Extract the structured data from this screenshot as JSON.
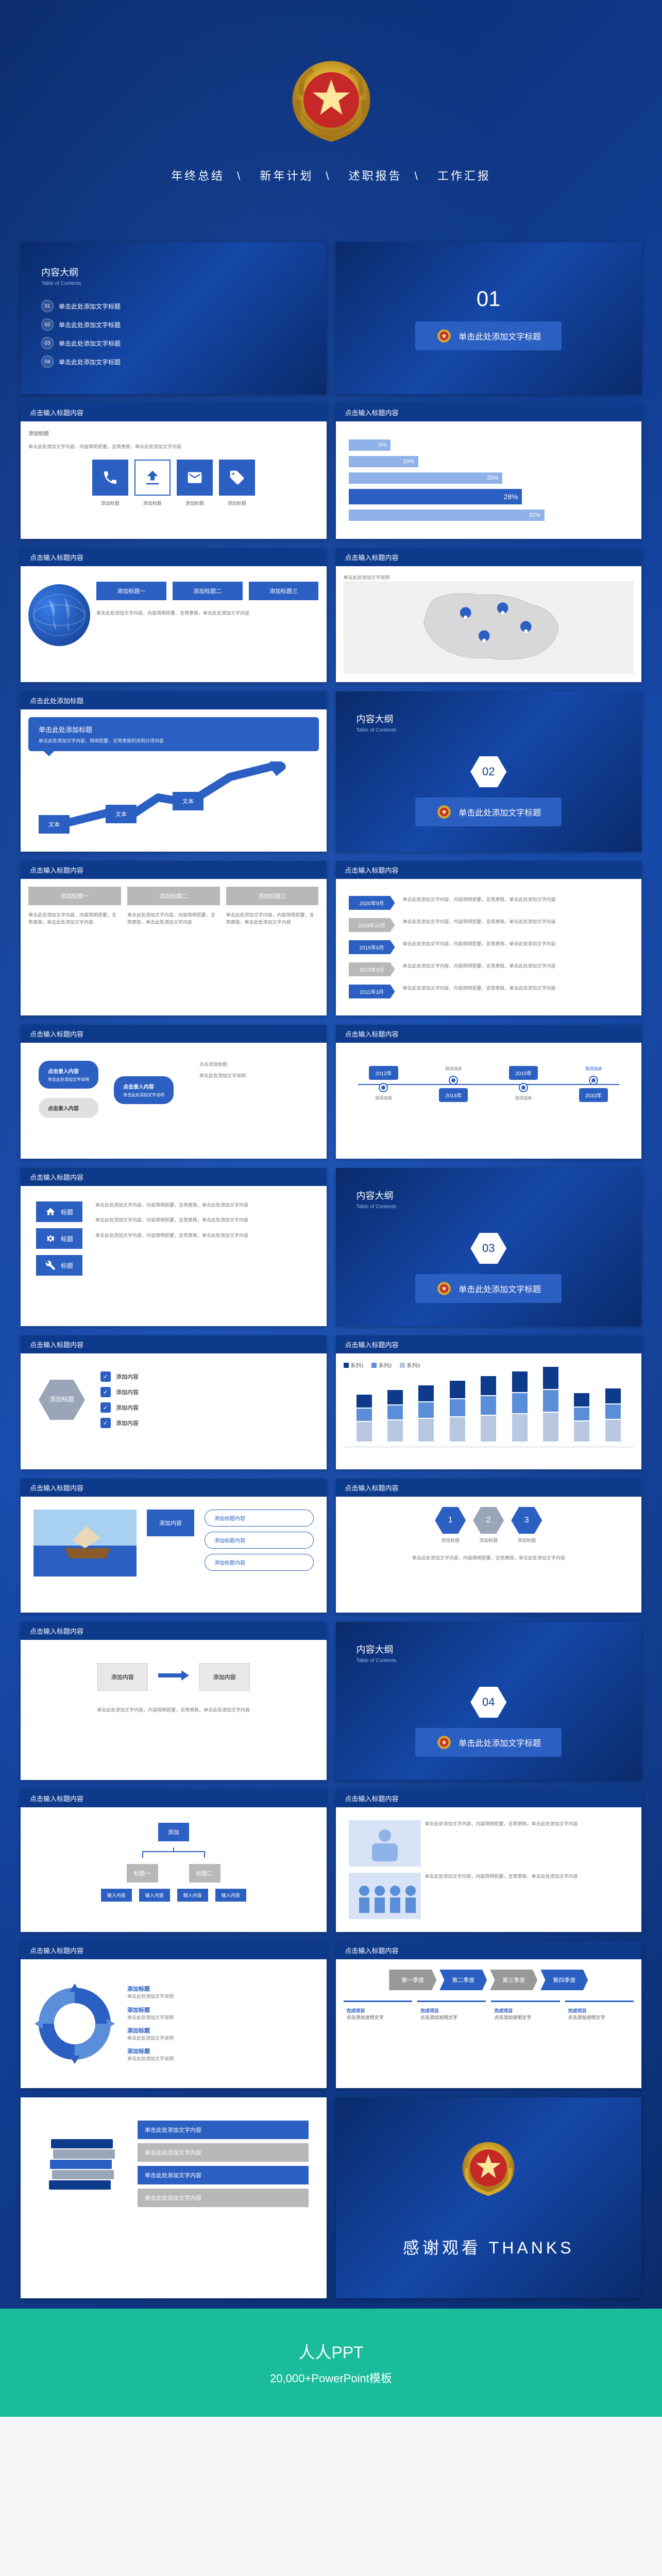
{
  "colors": {
    "primary": "#2b5fc2",
    "dark": "#0e3a8c",
    "light": "#8fb3e8",
    "gray": "#b8b8b8",
    "green": "#1abc9c"
  },
  "cover": {
    "categories": [
      "年终总结",
      "新年计划",
      "述职报告",
      "工作汇报"
    ],
    "separator": "\\"
  },
  "toc": {
    "title": "内容大纲",
    "subtitle": "Table of Contents",
    "items": [
      {
        "num": "01",
        "label": "单击此处添加文字标题"
      },
      {
        "num": "02",
        "label": "单击此处添加文字标题"
      },
      {
        "num": "03",
        "label": "单击此处添加文字标题"
      },
      {
        "num": "04",
        "label": "单击此处添加文字标题"
      }
    ]
  },
  "section": {
    "label": "单击此处添加文字标题"
  },
  "slide_header": "点击输入标题内容",
  "slide_header_alt": "点击此处添加标题",
  "placeholder": {
    "title": "添加标题",
    "sub": "添加副标题",
    "text": "文本",
    "content": "添加内容",
    "click_input": "点击录入内容",
    "click_title": "点击添加标题",
    "desc_long": "单击此处添加文字内容，内容简明扼要，言简意赅，单击此处添加文字内容",
    "desc_short": "单击此处添加文字说明"
  },
  "bars": {
    "values": [
      5,
      10,
      25,
      28,
      32
    ],
    "labels": [
      "5%",
      "10%",
      "25%",
      "28%",
      "32%"
    ],
    "highlighted_index": 3
  },
  "icons_row": {
    "icons": [
      "phone",
      "ship",
      "envelope",
      "tag"
    ],
    "labels": [
      "添加标题",
      "添加标题",
      "添加标题",
      "添加标题"
    ]
  },
  "three_cols": {
    "heads": [
      "添加标题一",
      "添加标题二",
      "添加标题三"
    ]
  },
  "callout": {
    "title": "单击此处添加标题",
    "body": "单击此处添加文字内容，简明扼要，言简意赅的说明分项内容"
  },
  "arrow_labels": [
    "文本",
    "文本",
    "文本"
  ],
  "vertical_timeline": {
    "rows": [
      {
        "date": "2020年9月",
        "gray": false
      },
      {
        "date": "2019年10月",
        "gray": true
      },
      {
        "date": "2015年6月",
        "gray": false
      },
      {
        "date": "2013年8月",
        "gray": true
      },
      {
        "date": "2011年3月",
        "gray": false
      }
    ]
  },
  "speech_bubbles": [
    {
      "label": "点击录入内容",
      "blue": true
    },
    {
      "label": "点击录入内容",
      "blue": false
    },
    {
      "label": "点击录入内容",
      "blue": true
    }
  ],
  "achievement_timeline": {
    "years": [
      "2012年",
      "2014年",
      "2015年",
      "2033年"
    ],
    "title": "取得成绩",
    "desc": "点击添加文字说明"
  },
  "gear_list": [
    {
      "icon": "home",
      "label": "标题"
    },
    {
      "icon": "gear",
      "label": "标题"
    },
    {
      "icon": "wrench",
      "label": "标题"
    }
  ],
  "check_list": {
    "title": "添加标题",
    "items": [
      "添加内容",
      "添加内容",
      "添加内容",
      "添加内容"
    ]
  },
  "stacked_chart": {
    "groups": 9,
    "segments": [
      {
        "color": "#0e3a8c",
        "base": 25
      },
      {
        "color": "#5a8ed8",
        "base": 20
      },
      {
        "color": "#b8c8e0",
        "base": 30
      }
    ],
    "legend": [
      "系列1",
      "系列2",
      "系列3"
    ]
  },
  "ship_caption": "添加内容",
  "pill_list": [
    "添加标题内容",
    "添加标题内容",
    "添加标题内容"
  ],
  "proc": {
    "left": "添加内容",
    "right": "添加内容"
  },
  "flow": {
    "top": "添加",
    "children": [
      "标题一",
      "标题二"
    ],
    "leaves": [
      "输入内容",
      "输入内容",
      "输入内容",
      "输入内容"
    ]
  },
  "cycle_labels": [
    "添加标题",
    "添加标题",
    "添加标题",
    "添加标题"
  ],
  "arrow_sequence": [
    "第一季度",
    "第二季度",
    "第三季度",
    "第四季度"
  ],
  "summary": {
    "head": "完成项目",
    "body": "点击添加说明文字"
  },
  "book": {
    "lines": [
      "单击此处添加文字内容",
      "单击此处添加文字内容",
      "单击此处添加文字内容",
      "单击此处添加文字内容"
    ]
  },
  "thanks": {
    "cn": "感谢观看",
    "en": "THANKS"
  },
  "footer": {
    "brand": "人人PPT",
    "tagline": "20,000+PowerPoint模板"
  },
  "watermark": "人人PPT"
}
